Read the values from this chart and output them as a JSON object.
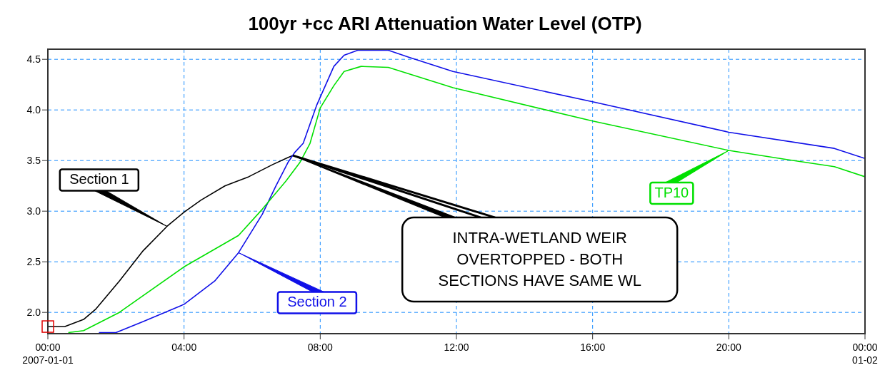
{
  "chart_data": {
    "type": "line",
    "title": "100yr +cc ARI Attenuation Water Level (OTP)",
    "xlim": [
      0,
      24
    ],
    "xticks": [
      {
        "value": 0,
        "label": "00:00\n2007-01-01"
      },
      {
        "value": 4,
        "label": "04:00"
      },
      {
        "value": 8,
        "label": "08:00"
      },
      {
        "value": 12,
        "label": "12:00"
      },
      {
        "value": 16,
        "label": "16:00"
      },
      {
        "value": 20,
        "label": "20:00"
      },
      {
        "value": 24,
        "label": "00:00\n01-02"
      }
    ],
    "ylim": [
      1.79,
      4.6
    ],
    "yticks": [
      {
        "value": 2,
        "label": "2.0"
      },
      {
        "value": 2.5,
        "label": "2.5"
      },
      {
        "value": 3,
        "label": "3.0"
      },
      {
        "value": 3.5,
        "label": "3.5"
      },
      {
        "value": 4,
        "label": "4.0"
      },
      {
        "value": 4.5,
        "label": "4.5"
      }
    ],
    "grid": true,
    "marker": "none",
    "line_style": "solid",
    "series": [
      {
        "name": "Section 1",
        "color": "#000000",
        "x": [
          0,
          0.5,
          1.05,
          1.4,
          2.1,
          2.8,
          3.5,
          4.0,
          4.5,
          5.2,
          5.9,
          6.6,
          7.05,
          7.2
        ],
        "values": [
          1.86,
          1.86,
          1.93,
          2.03,
          2.31,
          2.61,
          2.85,
          2.99,
          3.11,
          3.25,
          3.34,
          3.46,
          3.53,
          3.55
        ]
      },
      {
        "name": "Section 2",
        "color": "#1010e8",
        "x": [
          1.5,
          2.0,
          2.8,
          4.0,
          4.9,
          5.6,
          6.3,
          6.7,
          7.05,
          7.25,
          7.5,
          7.9,
          8.4,
          8.7,
          9.1,
          10.0,
          10.6,
          11.9,
          16.0,
          20.0,
          23.1,
          24.0
        ],
        "values": [
          1.8,
          1.8,
          1.91,
          2.08,
          2.31,
          2.59,
          2.97,
          3.25,
          3.48,
          3.58,
          3.67,
          4.05,
          4.43,
          4.54,
          4.59,
          4.59,
          4.52,
          4.38,
          4.08,
          3.78,
          3.62,
          3.52
        ]
      },
      {
        "name": "TP10",
        "color": "#00e000",
        "x": [
          0.6,
          1.05,
          2.1,
          4.0,
          5.6,
          6.3,
          7.0,
          7.4,
          7.7,
          8.0,
          8.4,
          8.7,
          9.2,
          10.0,
          11.9,
          16.0,
          20.0,
          21.7,
          23.1,
          24.0
        ],
        "values": [
          1.8,
          1.82,
          2.0,
          2.45,
          2.76,
          3.02,
          3.3,
          3.48,
          3.67,
          4.02,
          4.24,
          4.38,
          4.43,
          4.42,
          4.22,
          3.89,
          3.6,
          3.51,
          3.44,
          3.34
        ]
      }
    ],
    "annotations": [
      {
        "text": "INTRA-WETLAND WEIR\nOVERTOPPED - BOTH\nSECTIONS HAVE SAME WL",
        "x": 7.2,
        "y": 3.55
      }
    ]
  }
}
